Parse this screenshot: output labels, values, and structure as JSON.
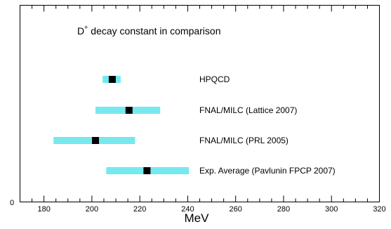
{
  "chart_data": {
    "type": "scatter",
    "title_main": "D",
    "title_sup": "+",
    "title_rest": " decay constant in comparison",
    "xlabel": "MeV",
    "xlim": [
      170,
      320
    ],
    "x_ticks": [
      180,
      200,
      220,
      240,
      260,
      280,
      300,
      320
    ],
    "y_zero_label": "0",
    "grid": false,
    "band_color": "#66e6f0",
    "marker_color": "#000000",
    "measurements": [
      {
        "label": "HPQCD",
        "value": 208.5,
        "low": 204.5,
        "high": 212.0
      },
      {
        "label": "FNAL/MILC  (Lattice 2007)",
        "value": 215.5,
        "low": 201.5,
        "high": 228.5
      },
      {
        "label": "FNAL/MILC (PRL 2005)",
        "value": 201.5,
        "low": 184.0,
        "high": 218.0
      },
      {
        "label": "Exp. Average (Pavlunin FPCP 2007)",
        "value": 223.0,
        "low": 206.0,
        "high": 240.5
      }
    ]
  }
}
